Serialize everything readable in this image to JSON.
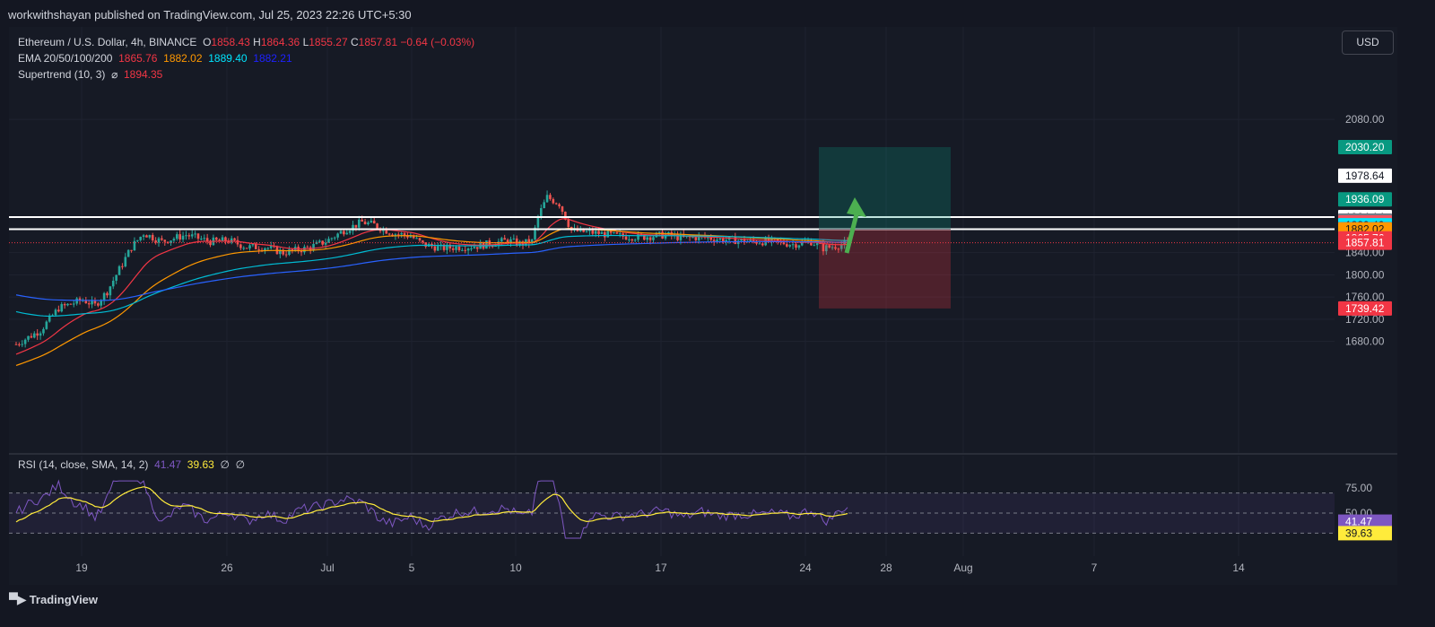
{
  "publisher": "workwithshayan published on TradingView.com, Jul 25, 2023 22:26 UTC+5:30",
  "currency_button": "USD",
  "legend": {
    "symbol": "Ethereum / U.S. Dollar, 4h, BINANCE",
    "o_label": "O",
    "o_val": "1858.43",
    "h_label": "H",
    "h_val": "1864.36",
    "l_label": "L",
    "l_val": "1855.27",
    "c_label": "C",
    "c_val": "1857.81",
    "change": "−0.64 (−0.03%)",
    "ema_label": "EMA 20/50/100/200",
    "ema20": "1865.76",
    "ema50": "1882.02",
    "ema100": "1889.40",
    "ema200": "1882.21",
    "st_label": "Supertrend (10, 3)",
    "st_sym": "⌀",
    "st_val": "1894.35",
    "rsi_label": "RSI (14, close, SMA, 14, 2)",
    "rsi_val": "41.47",
    "rsi_sma": "39.63",
    "rsi_na1": "∅",
    "rsi_na2": "∅"
  },
  "footer_logo": "TradingView",
  "colors": {
    "bg": "#161a25",
    "up": "#26a69a",
    "down": "#ef5350",
    "ema20": "#f23645",
    "ema50": "#ff9800",
    "ema100": "#00bcd4",
    "ema200": "#2962ff",
    "rsi": "#7e57c2",
    "rsi_sma": "#ffeb3b"
  },
  "chart_data": {
    "type": "candlestick",
    "y_ticks": [
      2080,
      1840,
      1800,
      1760,
      1720,
      1680
    ],
    "x_ticks": [
      "19",
      "26",
      "Jul",
      "5",
      "10",
      "17",
      "24",
      "28",
      "Aug",
      "7",
      "14"
    ],
    "price_labels": [
      {
        "value": "2030.20",
        "color": "#089981"
      },
      {
        "value": "1978.64",
        "color": "#ffffff"
      },
      {
        "value": "1936.09",
        "color": "#089981"
      },
      {
        "value": "1904.14",
        "color": "#ffffff"
      },
      {
        "value": "1897.78",
        "color": "#787b86"
      },
      {
        "value": "1894.35",
        "color": "#f7525f"
      },
      {
        "value": "1889.40",
        "color": "#00e5ff"
      },
      {
        "value": "1882.21",
        "color": "#1e00ff"
      },
      {
        "value": "1882.02",
        "color": "#ff9800"
      },
      {
        "value": "1865.76",
        "color": "#f23645"
      },
      {
        "value": "1857.81",
        "color": "#f23645"
      },
      {
        "value": "1739.42",
        "color": "#f23645"
      }
    ],
    "horizontal_levels": [
      1904.14,
      1882.21
    ],
    "last_close": 1857.81,
    "position": {
      "entry": 1882.21,
      "target": 2030.2,
      "stop": 1739.42
    },
    "rsi": {
      "levels": [
        75.0,
        50.0
      ],
      "labels": [
        "75.00",
        "50.00",
        "41.47",
        "39.63"
      ],
      "last": 41.47,
      "sma": 39.63
    }
  }
}
